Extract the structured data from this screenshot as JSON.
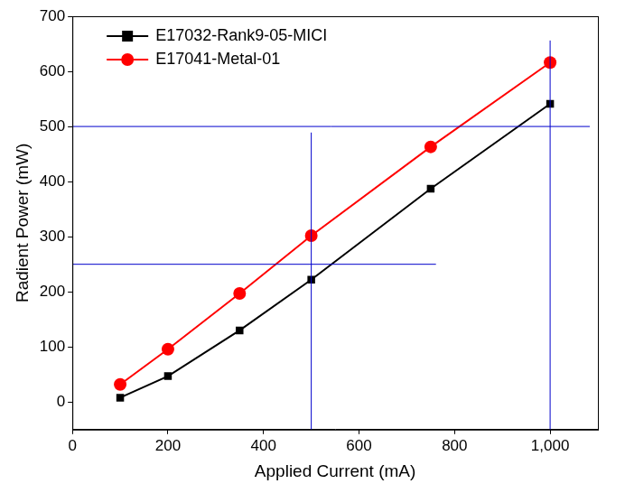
{
  "chart_data": {
    "type": "line",
    "x_label": "Applied Current (mA)",
    "y_label": "Radient Power (mW)",
    "series": [
      {
        "name": "E17032-Rank9-05-MICI",
        "color": "#000000",
        "marker": "square",
        "x": [
          100,
          200,
          350,
          500,
          750,
          1000
        ],
        "values": [
          8,
          47,
          130,
          222,
          387,
          541
        ]
      },
      {
        "name": "E17041-Metal-01",
        "color": "#ff0000",
        "marker": "circle",
        "x": [
          100,
          200,
          350,
          500,
          750,
          1000
        ],
        "values": [
          32,
          96,
          197,
          302,
          463,
          616
        ]
      }
    ],
    "reference_lines": [
      {
        "color": "#0000cc",
        "x": [
          500,
          500
        ],
        "y": [
          -50,
          489
        ]
      },
      {
        "color": "#0000cc",
        "x": [
          0,
          761
        ],
        "y": [
          250,
          250
        ]
      },
      {
        "color": "#0000cc",
        "x": [
          1000,
          1000
        ],
        "y": [
          -50,
          656
        ]
      },
      {
        "color": "#0000cc",
        "x": [
          0,
          1083
        ],
        "y": [
          500,
          500
        ]
      }
    ],
    "xlim": [
      0,
      1100
    ],
    "xticks": [
      0,
      200,
      400,
      600,
      800,
      1000
    ],
    "ylim": [
      -50,
      700
    ],
    "yticks": [
      0,
      100,
      200,
      300,
      400,
      500,
      600,
      700
    ],
    "legend": "upper left",
    "grid": false
  }
}
